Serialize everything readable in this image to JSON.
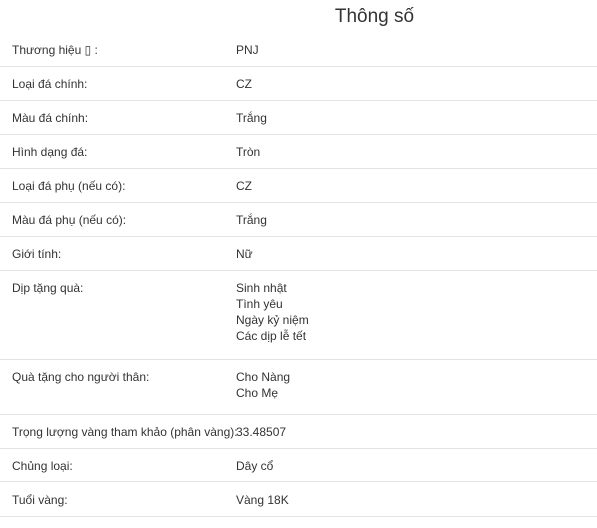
{
  "title": "Thông số",
  "rows": [
    {
      "label": "Thương hiệu ▯ :",
      "values": [
        "PNJ"
      ]
    },
    {
      "label": "Loại đá chính:",
      "values": [
        "CZ"
      ]
    },
    {
      "label": "Màu đá chính:",
      "values": [
        "Trắng"
      ]
    },
    {
      "label": "Hình dạng đá:",
      "values": [
        "Tròn"
      ]
    },
    {
      "label": "Loại đá phụ (nếu có):",
      "values": [
        "CZ"
      ]
    },
    {
      "label": "Màu đá phụ (nếu có):",
      "values": [
        "Trắng"
      ]
    },
    {
      "label": "Giới tính:",
      "values": [
        "Nữ"
      ]
    },
    {
      "label": "Dịp tặng quà:",
      "values": [
        "Sinh nhật",
        "Tình yêu",
        "Ngày kỷ niệm",
        "Các dịp lễ tết"
      ]
    },
    {
      "label": "Quà tặng cho người thân:",
      "values": [
        "Cho Nàng",
        "Cho Mẹ"
      ]
    },
    {
      "label": "Trọng lượng vàng tham khảo (phân vàng):",
      "values": [
        "33.48507"
      ]
    },
    {
      "label": "Chủng loại:",
      "values": [
        "Dây cổ"
      ]
    },
    {
      "label": "Tuổi vàng:",
      "values": [
        "Vàng 18K"
      ]
    }
  ]
}
